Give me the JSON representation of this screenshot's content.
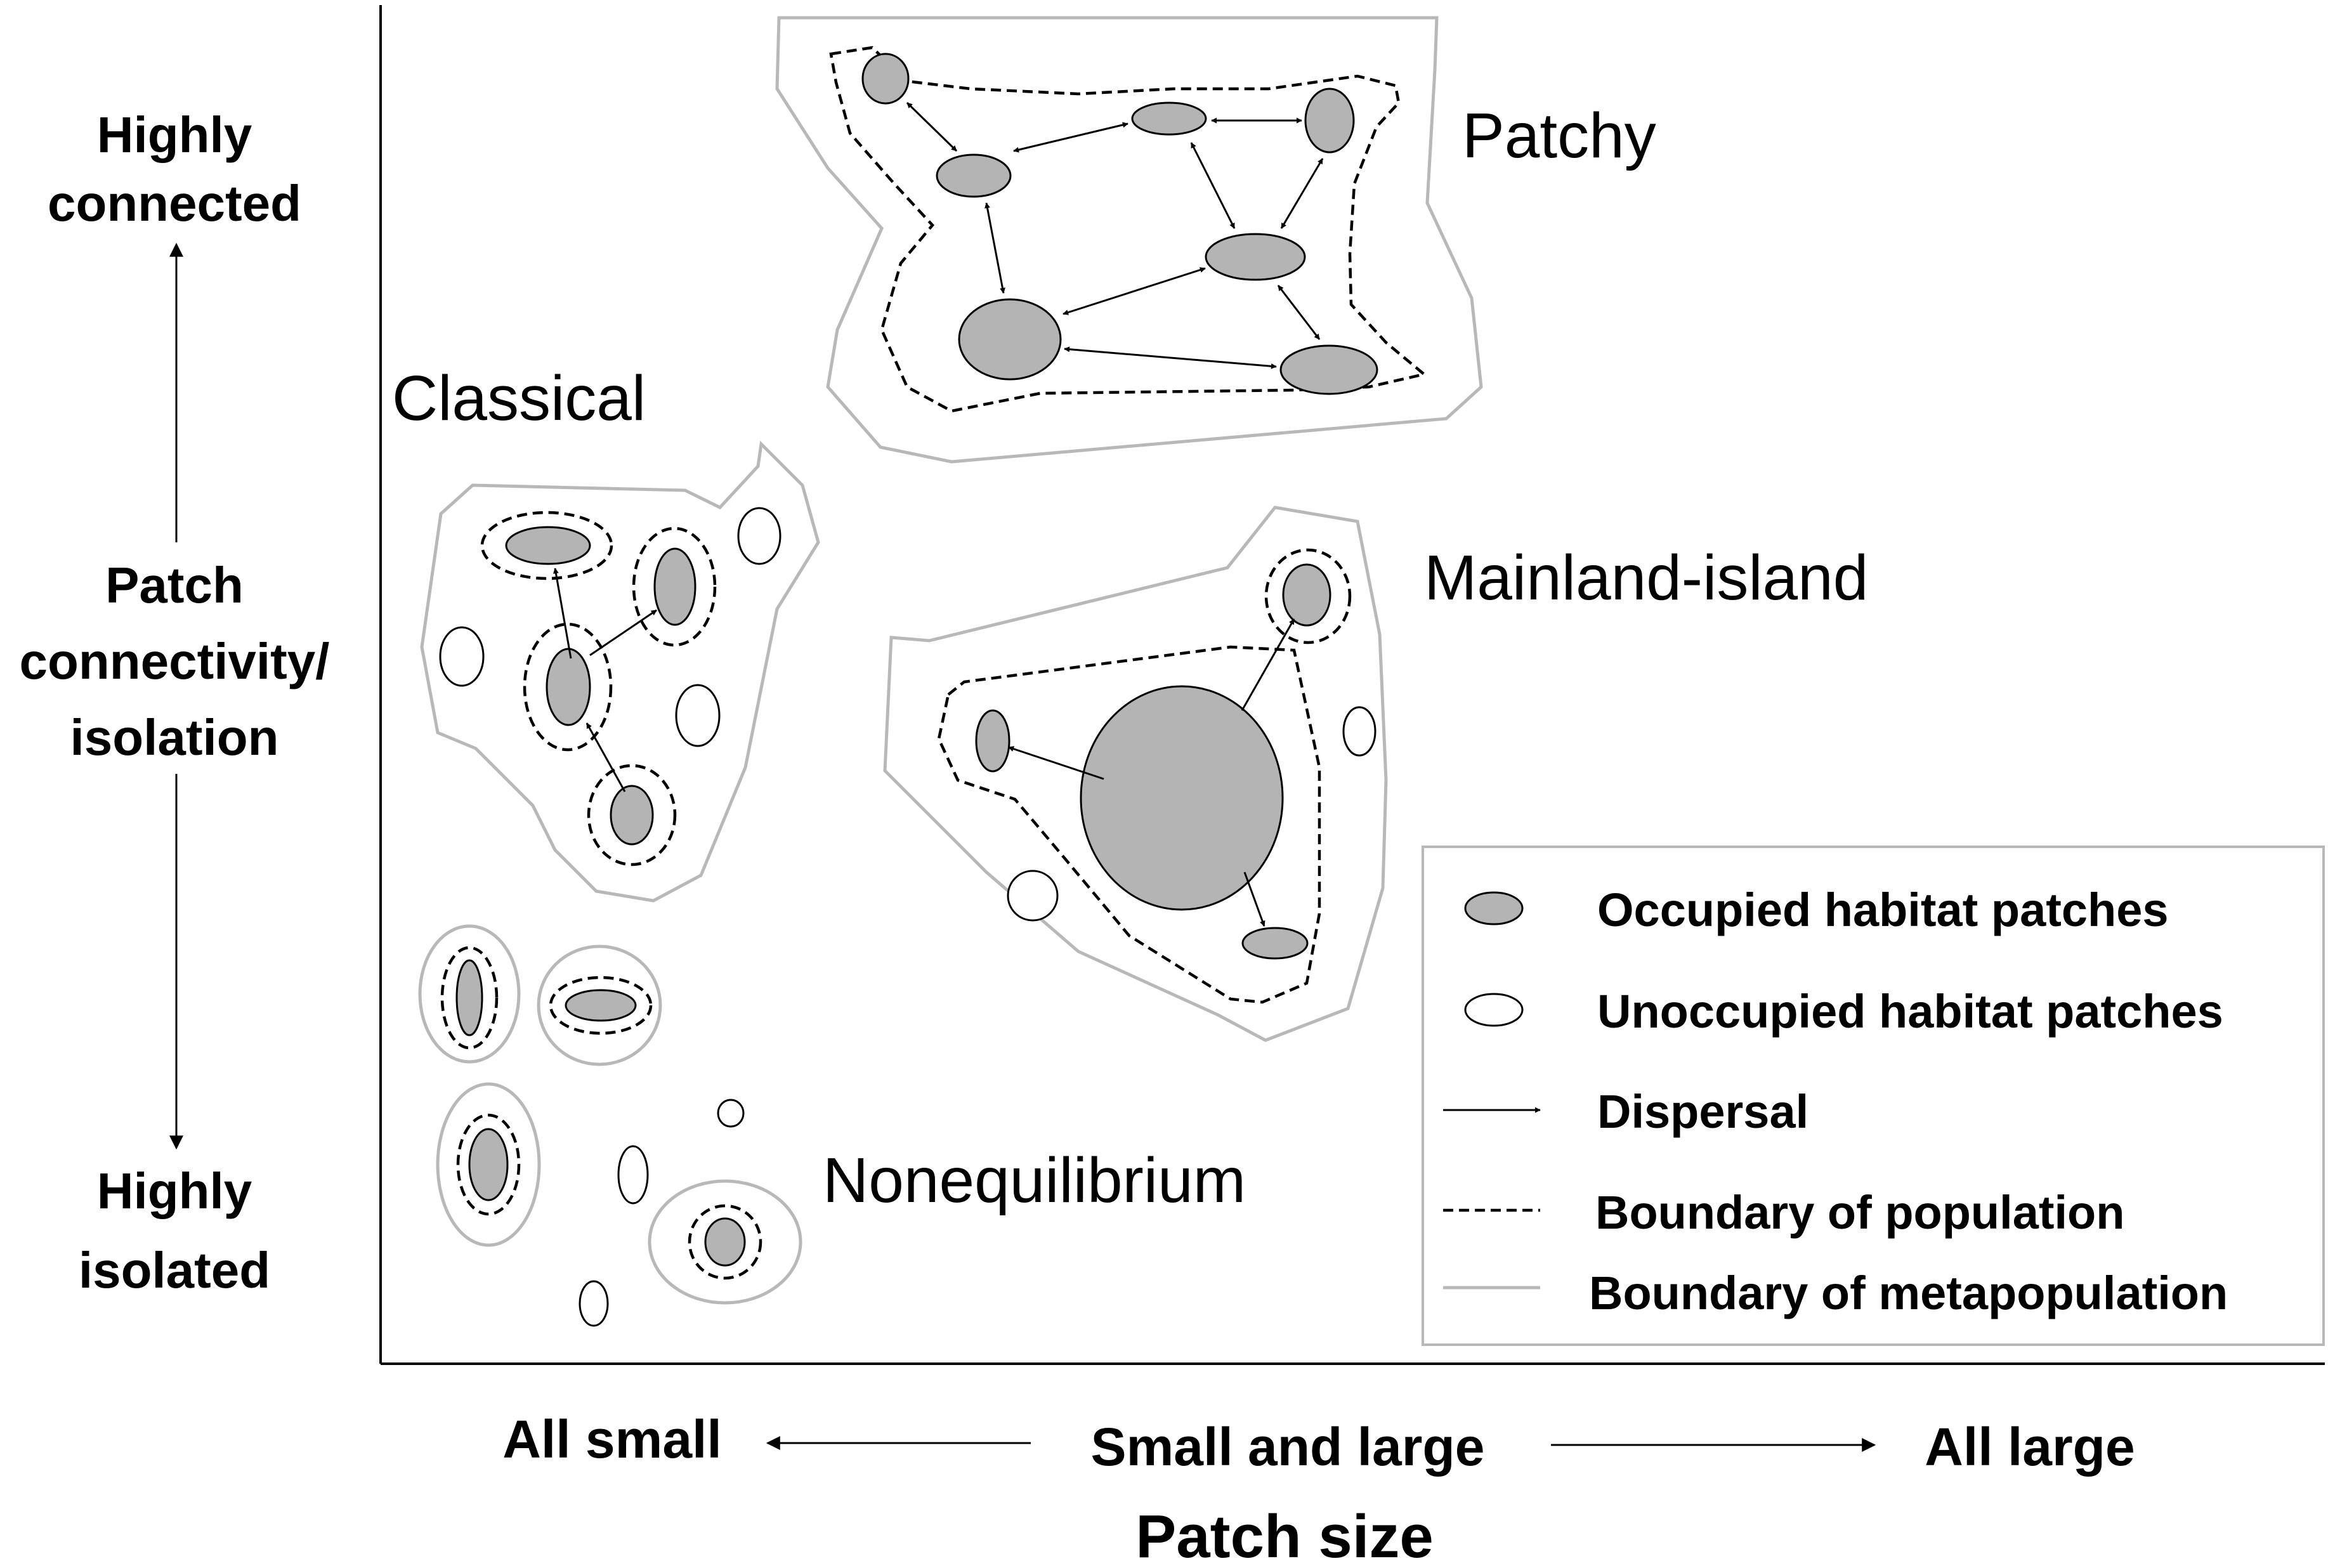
{
  "y_axis": {
    "top_label_line1": "Highly",
    "top_label_line2": "connected",
    "title_line1": "Patch",
    "title_line2": "connectivity/",
    "title_line3": "isolation",
    "bottom_label_line1": "Highly",
    "bottom_label_line2": "isolated"
  },
  "x_axis": {
    "left_label": "All small",
    "center_label": "Small and large",
    "right_label": "All large",
    "title": "Patch size"
  },
  "metapopulation_types": {
    "patchy": "Patchy",
    "classical": "Classical",
    "mainland_island": "Mainland-island",
    "nonequilibrium": "Nonequilibrium"
  },
  "legend": {
    "occupied": "Occupied habitat patches",
    "unoccupied": "Unoccupied habitat patches",
    "dispersal": "Dispersal",
    "population_boundary": "Boundary of population",
    "metapopulation_boundary": "Boundary of metapopulation"
  },
  "colors": {
    "occupied_fill": "#b4b4b4",
    "metapopulation_boundary": "#b8b8b8",
    "population_boundary": "#000000"
  }
}
